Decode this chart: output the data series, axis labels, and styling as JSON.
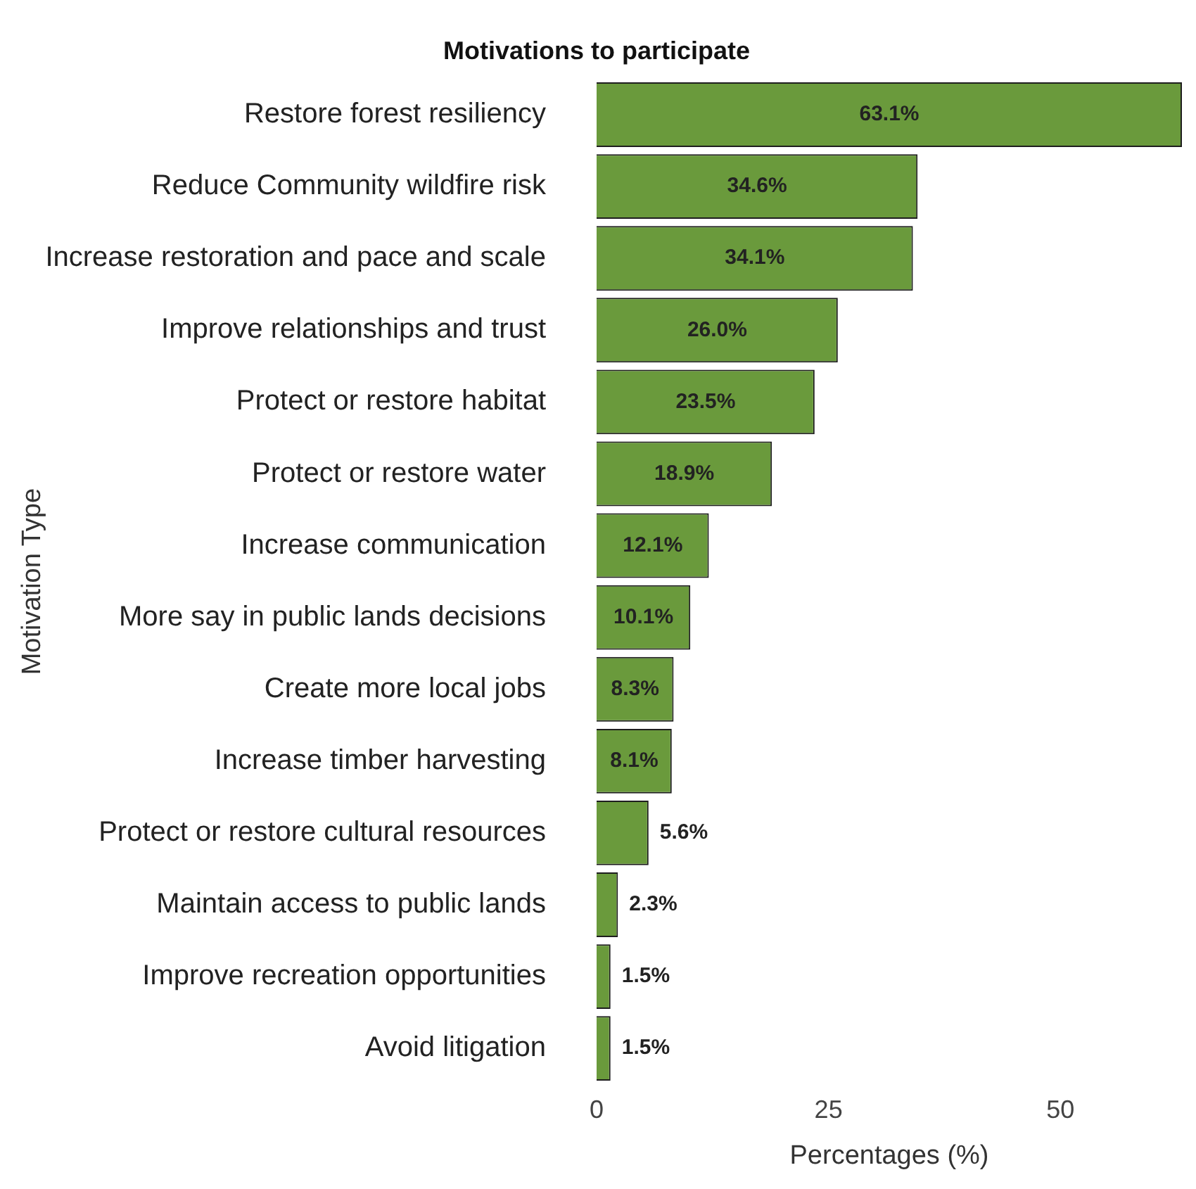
{
  "chart_data": {
    "type": "bar",
    "orientation": "horizontal",
    "title": "Motivations to participate",
    "xlabel": "Percentages (%)",
    "ylabel": "Motivation Type",
    "categories": [
      "Restore forest resiliency",
      "Reduce Community wildfire risk",
      "Increase restoration and pace and scale",
      "Improve relationships and trust",
      "Protect or restore habitat",
      "Protect or restore water",
      "Increase communication",
      "More say in public lands decisions",
      "Create more local jobs",
      "Increase timber harvesting",
      "Protect or restore cultural resources",
      "Maintain access to public lands",
      "Improve recreation opportunities",
      "Avoid litigation"
    ],
    "values": [
      63.1,
      34.6,
      34.1,
      26.0,
      23.5,
      18.9,
      12.1,
      10.1,
      8.3,
      8.1,
      5.6,
      2.3,
      1.5,
      1.5
    ],
    "value_labels": [
      "63.1%",
      "34.6%",
      "34.1%",
      "26.0%",
      "23.5%",
      "18.9%",
      "12.1%",
      "10.1%",
      "8.3%",
      "8.1%",
      "5.6%",
      "2.3%",
      "1.5%",
      "1.5%"
    ],
    "color": "#6a9a3c",
    "xlim": [
      0,
      63.1
    ],
    "xticks": [
      0,
      25,
      50
    ],
    "grid": false,
    "legend": false
  }
}
